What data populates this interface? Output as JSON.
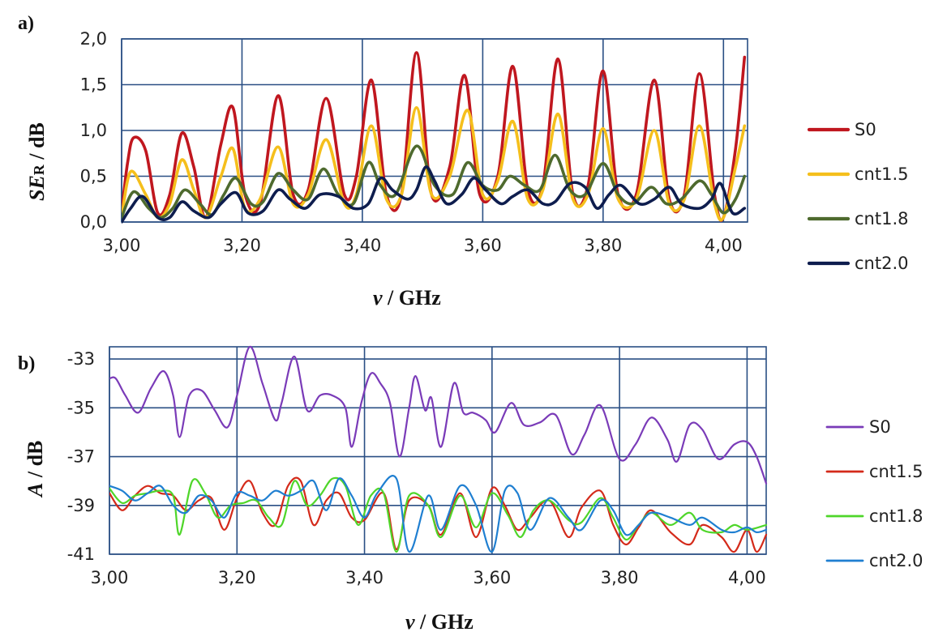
{
  "chart_data": [
    {
      "panel_label": "a)",
      "type": "line",
      "xlabel_var": "ν",
      "xlabel_unit": " / GHz",
      "ylabel_var": "SE",
      "ylabel_sub": "R",
      "ylabel_unit": " / dB",
      "xlim": [
        3.0,
        4.04
      ],
      "ylim": [
        0.0,
        2.0
      ],
      "xticks": [
        3.0,
        3.2,
        3.4,
        3.6,
        3.8,
        4.0
      ],
      "xtick_labels": [
        "3,00",
        "3,20",
        "3,40",
        "3,60",
        "3,80",
        "4,00"
      ],
      "yticks": [
        0.0,
        0.5,
        1.0,
        1.5,
        2.0
      ],
      "ytick_labels": [
        "0,0",
        "0,5",
        "1,0",
        "1,5",
        "2,0"
      ],
      "grid": true,
      "legend_position": "right",
      "series": [
        {
          "name": "S0",
          "color": "#c0171f",
          "x": [
            3.0,
            3.01,
            3.02,
            3.04,
            3.06,
            3.08,
            3.1,
            3.12,
            3.14,
            3.165,
            3.185,
            3.205,
            3.23,
            3.26,
            3.285,
            3.31,
            3.34,
            3.37,
            3.39,
            3.415,
            3.44,
            3.465,
            3.49,
            3.515,
            3.545,
            3.57,
            3.595,
            3.625,
            3.65,
            3.675,
            3.7,
            3.725,
            3.75,
            3.775,
            3.8,
            3.825,
            3.855,
            3.885,
            3.91,
            3.935,
            3.96,
            3.985,
            4.0,
            4.02,
            4.035
          ],
          "y": [
            0.1,
            0.65,
            0.92,
            0.78,
            0.1,
            0.3,
            0.97,
            0.6,
            0.05,
            0.85,
            1.25,
            0.3,
            0.2,
            1.38,
            0.3,
            0.35,
            1.35,
            0.3,
            0.5,
            1.55,
            0.3,
            0.3,
            1.85,
            0.3,
            0.6,
            1.6,
            0.3,
            0.5,
            1.7,
            0.35,
            0.4,
            1.78,
            0.3,
            0.4,
            1.65,
            0.3,
            0.3,
            1.55,
            0.25,
            0.3,
            1.62,
            0.3,
            0.05,
            0.8,
            1.8
          ]
        },
        {
          "name": "cnt1.5",
          "color": "#f5bf1c",
          "x": [
            3.0,
            3.015,
            3.04,
            3.06,
            3.08,
            3.1,
            3.12,
            3.14,
            3.165,
            3.185,
            3.205,
            3.23,
            3.26,
            3.285,
            3.31,
            3.34,
            3.37,
            3.39,
            3.415,
            3.44,
            3.465,
            3.49,
            3.515,
            3.545,
            3.575,
            3.6,
            3.625,
            3.65,
            3.675,
            3.7,
            3.725,
            3.75,
            3.775,
            3.8,
            3.825,
            3.855,
            3.885,
            3.91,
            3.935,
            3.96,
            3.985,
            4.0,
            4.02,
            4.035
          ],
          "y": [
            0.05,
            0.55,
            0.3,
            0.05,
            0.2,
            0.68,
            0.35,
            0.05,
            0.5,
            0.8,
            0.15,
            0.25,
            0.82,
            0.2,
            0.3,
            0.9,
            0.2,
            0.3,
            1.05,
            0.25,
            0.3,
            1.25,
            0.3,
            0.5,
            1.22,
            0.3,
            0.45,
            1.1,
            0.25,
            0.35,
            1.18,
            0.25,
            0.3,
            1.02,
            0.25,
            0.25,
            1.0,
            0.2,
            0.25,
            1.05,
            0.2,
            0.05,
            0.6,
            1.05
          ]
        },
        {
          "name": "cnt1.8",
          "color": "#4e6a2e",
          "x": [
            3.0,
            3.02,
            3.045,
            3.065,
            3.085,
            3.105,
            3.13,
            3.15,
            3.17,
            3.19,
            3.215,
            3.235,
            3.26,
            3.285,
            3.31,
            3.335,
            3.36,
            3.385,
            3.41,
            3.43,
            3.455,
            3.49,
            3.52,
            3.55,
            3.575,
            3.6,
            3.625,
            3.645,
            3.67,
            3.695,
            3.72,
            3.745,
            3.77,
            3.8,
            3.825,
            3.85,
            3.88,
            3.905,
            3.93,
            3.96,
            3.98,
            4.0,
            4.02,
            4.035
          ],
          "y": [
            0.05,
            0.33,
            0.15,
            0.05,
            0.15,
            0.35,
            0.2,
            0.08,
            0.3,
            0.48,
            0.2,
            0.22,
            0.53,
            0.35,
            0.25,
            0.58,
            0.3,
            0.2,
            0.65,
            0.4,
            0.3,
            0.83,
            0.4,
            0.3,
            0.65,
            0.4,
            0.35,
            0.5,
            0.4,
            0.35,
            0.73,
            0.35,
            0.3,
            0.64,
            0.3,
            0.2,
            0.38,
            0.2,
            0.25,
            0.45,
            0.3,
            0.1,
            0.25,
            0.5
          ]
        },
        {
          "name": "cnt2.0",
          "color": "#0e1d4e",
          "x": [
            3.0,
            3.015,
            3.035,
            3.06,
            3.08,
            3.1,
            3.12,
            3.145,
            3.165,
            3.19,
            3.21,
            3.235,
            3.26,
            3.28,
            3.305,
            3.33,
            3.36,
            3.385,
            3.41,
            3.43,
            3.45,
            3.475,
            3.49,
            3.505,
            3.52,
            3.54,
            3.565,
            3.585,
            3.605,
            3.63,
            3.65,
            3.675,
            3.7,
            3.72,
            3.745,
            3.77,
            3.79,
            3.81,
            3.83,
            3.86,
            3.885,
            3.91,
            3.93,
            3.96,
            3.98,
            3.995,
            4.015,
            4.035
          ],
          "y": [
            0.0,
            0.15,
            0.28,
            0.05,
            0.05,
            0.22,
            0.12,
            0.05,
            0.2,
            0.32,
            0.1,
            0.12,
            0.35,
            0.25,
            0.15,
            0.3,
            0.28,
            0.15,
            0.2,
            0.48,
            0.35,
            0.25,
            0.35,
            0.6,
            0.45,
            0.2,
            0.3,
            0.48,
            0.35,
            0.2,
            0.28,
            0.35,
            0.2,
            0.22,
            0.42,
            0.38,
            0.15,
            0.3,
            0.4,
            0.2,
            0.25,
            0.38,
            0.2,
            0.15,
            0.25,
            0.42,
            0.1,
            0.15
          ]
        }
      ]
    },
    {
      "panel_label": "b)",
      "type": "line",
      "xlabel_var": "ν",
      "xlabel_unit": " / GHz",
      "ylabel_var": "A",
      "ylabel_unit": " / dB",
      "xlim": [
        3.0,
        4.03
      ],
      "ylim": [
        -41,
        -32.5
      ],
      "xticks": [
        3.0,
        3.2,
        3.4,
        3.6,
        3.8,
        4.0
      ],
      "xtick_labels": [
        "3,00",
        "3,20",
        "3,40",
        "3,60",
        "3,80",
        "4,00"
      ],
      "yticks": [
        -41,
        -39,
        -37,
        -35,
        -33
      ],
      "ytick_labels": [
        "-41",
        "-39",
        "-37",
        "-35",
        "-33"
      ],
      "grid": true,
      "legend_position": "right",
      "series": [
        {
          "name": "S0",
          "color": "#7a3bb8",
          "x": [
            3.0,
            3.01,
            3.025,
            3.045,
            3.065,
            3.085,
            3.1,
            3.11,
            3.125,
            3.145,
            3.165,
            3.185,
            3.2,
            3.22,
            3.24,
            3.26,
            3.27,
            3.29,
            3.31,
            3.33,
            3.35,
            3.37,
            3.38,
            3.395,
            3.41,
            3.425,
            3.44,
            3.455,
            3.47,
            3.48,
            3.495,
            3.505,
            3.52,
            3.54,
            3.555,
            3.57,
            3.59,
            3.605,
            3.63,
            3.65,
            3.675,
            3.7,
            3.725,
            3.745,
            3.77,
            3.8,
            3.825,
            3.85,
            3.875,
            3.89,
            3.91,
            3.93,
            3.955,
            3.98,
            4.0,
            4.015,
            4.03
          ],
          "y": [
            -33.8,
            -33.8,
            -34.5,
            -35.2,
            -34.2,
            -33.5,
            -34.5,
            -36.2,
            -34.5,
            -34.3,
            -35.1,
            -35.8,
            -34.5,
            -32.5,
            -34.0,
            -35.5,
            -34.8,
            -32.9,
            -35.1,
            -34.5,
            -34.5,
            -35.0,
            -36.6,
            -34.8,
            -33.6,
            -34.0,
            -34.8,
            -37.0,
            -35.0,
            -33.7,
            -35.1,
            -34.6,
            -36.6,
            -34.0,
            -35.2,
            -35.2,
            -35.5,
            -36.0,
            -34.8,
            -35.7,
            -35.6,
            -35.3,
            -36.9,
            -36.1,
            -34.9,
            -37.1,
            -36.5,
            -35.4,
            -36.3,
            -37.2,
            -35.7,
            -35.9,
            -37.1,
            -36.5,
            -36.4,
            -37.0,
            -38.1
          ]
        },
        {
          "name": "cnt1.5",
          "color": "#d42a1a",
          "x": [
            3.0,
            3.02,
            3.04,
            3.06,
            3.08,
            3.1,
            3.12,
            3.14,
            3.16,
            3.18,
            3.2,
            3.22,
            3.24,
            3.26,
            3.28,
            3.3,
            3.32,
            3.34,
            3.36,
            3.38,
            3.4,
            3.43,
            3.45,
            3.47,
            3.5,
            3.52,
            3.55,
            3.575,
            3.6,
            3.62,
            3.64,
            3.66,
            3.69,
            3.72,
            3.74,
            3.77,
            3.79,
            3.81,
            3.83,
            3.85,
            3.88,
            3.91,
            3.93,
            3.96,
            3.98,
            4.0,
            4.015,
            4.03
          ],
          "y": [
            -38.5,
            -39.2,
            -38.6,
            -38.2,
            -38.5,
            -38.6,
            -39.2,
            -38.8,
            -38.7,
            -40.0,
            -38.7,
            -38.0,
            -39.3,
            -39.8,
            -38.2,
            -38.0,
            -39.8,
            -38.8,
            -38.5,
            -39.5,
            -39.6,
            -38.5,
            -40.8,
            -38.8,
            -39.0,
            -40.2,
            -38.5,
            -40.3,
            -38.3,
            -39.0,
            -40.0,
            -39.5,
            -38.8,
            -40.3,
            -39.1,
            -38.4,
            -39.8,
            -40.6,
            -39.9,
            -39.2,
            -40.1,
            -40.6,
            -39.8,
            -40.3,
            -40.9,
            -40.0,
            -40.9,
            -40.2
          ]
        },
        {
          "name": "cnt1.8",
          "color": "#4fd62a",
          "x": [
            3.0,
            3.02,
            3.04,
            3.06,
            3.08,
            3.1,
            3.11,
            3.13,
            3.15,
            3.17,
            3.19,
            3.21,
            3.23,
            3.25,
            3.27,
            3.29,
            3.31,
            3.33,
            3.35,
            3.37,
            3.39,
            3.41,
            3.43,
            3.45,
            3.47,
            3.5,
            3.52,
            3.55,
            3.575,
            3.6,
            3.625,
            3.645,
            3.665,
            3.69,
            3.72,
            3.74,
            3.77,
            3.79,
            3.81,
            3.83,
            3.85,
            3.88,
            3.91,
            3.93,
            3.96,
            3.98,
            4.0,
            4.03
          ],
          "y": [
            -38.3,
            -38.9,
            -38.6,
            -38.5,
            -38.4,
            -38.6,
            -40.2,
            -38.0,
            -38.5,
            -39.5,
            -39.0,
            -38.9,
            -38.8,
            -39.5,
            -39.8,
            -38.0,
            -39.0,
            -38.6,
            -37.9,
            -38.2,
            -39.8,
            -38.6,
            -38.5,
            -40.9,
            -38.6,
            -39.0,
            -40.3,
            -38.6,
            -39.9,
            -38.5,
            -39.4,
            -40.3,
            -39.2,
            -38.8,
            -39.6,
            -39.7,
            -38.7,
            -39.5,
            -40.4,
            -39.8,
            -39.3,
            -39.8,
            -39.3,
            -40.0,
            -40.1,
            -39.8,
            -40.0,
            -39.8
          ]
        },
        {
          "name": "cnt2.0",
          "color": "#1f7fd1",
          "x": [
            3.0,
            3.02,
            3.04,
            3.06,
            3.08,
            3.1,
            3.12,
            3.14,
            3.16,
            3.18,
            3.2,
            3.22,
            3.24,
            3.26,
            3.28,
            3.3,
            3.32,
            3.34,
            3.36,
            3.38,
            3.4,
            3.42,
            3.45,
            3.47,
            3.5,
            3.52,
            3.55,
            3.575,
            3.6,
            3.62,
            3.64,
            3.66,
            3.69,
            3.72,
            3.74,
            3.77,
            3.79,
            3.81,
            3.83,
            3.85,
            3.88,
            3.91,
            3.93,
            3.96,
            3.98,
            4.0,
            4.015,
            4.03
          ],
          "y": [
            -38.2,
            -38.4,
            -38.8,
            -38.5,
            -38.2,
            -39.0,
            -39.3,
            -38.6,
            -38.8,
            -39.5,
            -38.5,
            -38.6,
            -38.8,
            -38.4,
            -38.6,
            -38.4,
            -38.0,
            -39.2,
            -37.9,
            -38.6,
            -39.5,
            -38.5,
            -37.9,
            -40.9,
            -38.6,
            -40.0,
            -38.2,
            -39.0,
            -40.9,
            -38.4,
            -38.5,
            -40.0,
            -38.7,
            -39.5,
            -40.0,
            -38.8,
            -39.2,
            -40.2,
            -39.8,
            -39.3,
            -39.5,
            -39.8,
            -39.5,
            -40.0,
            -40.1,
            -39.9,
            -40.1,
            -40.0
          ]
        }
      ]
    }
  ]
}
